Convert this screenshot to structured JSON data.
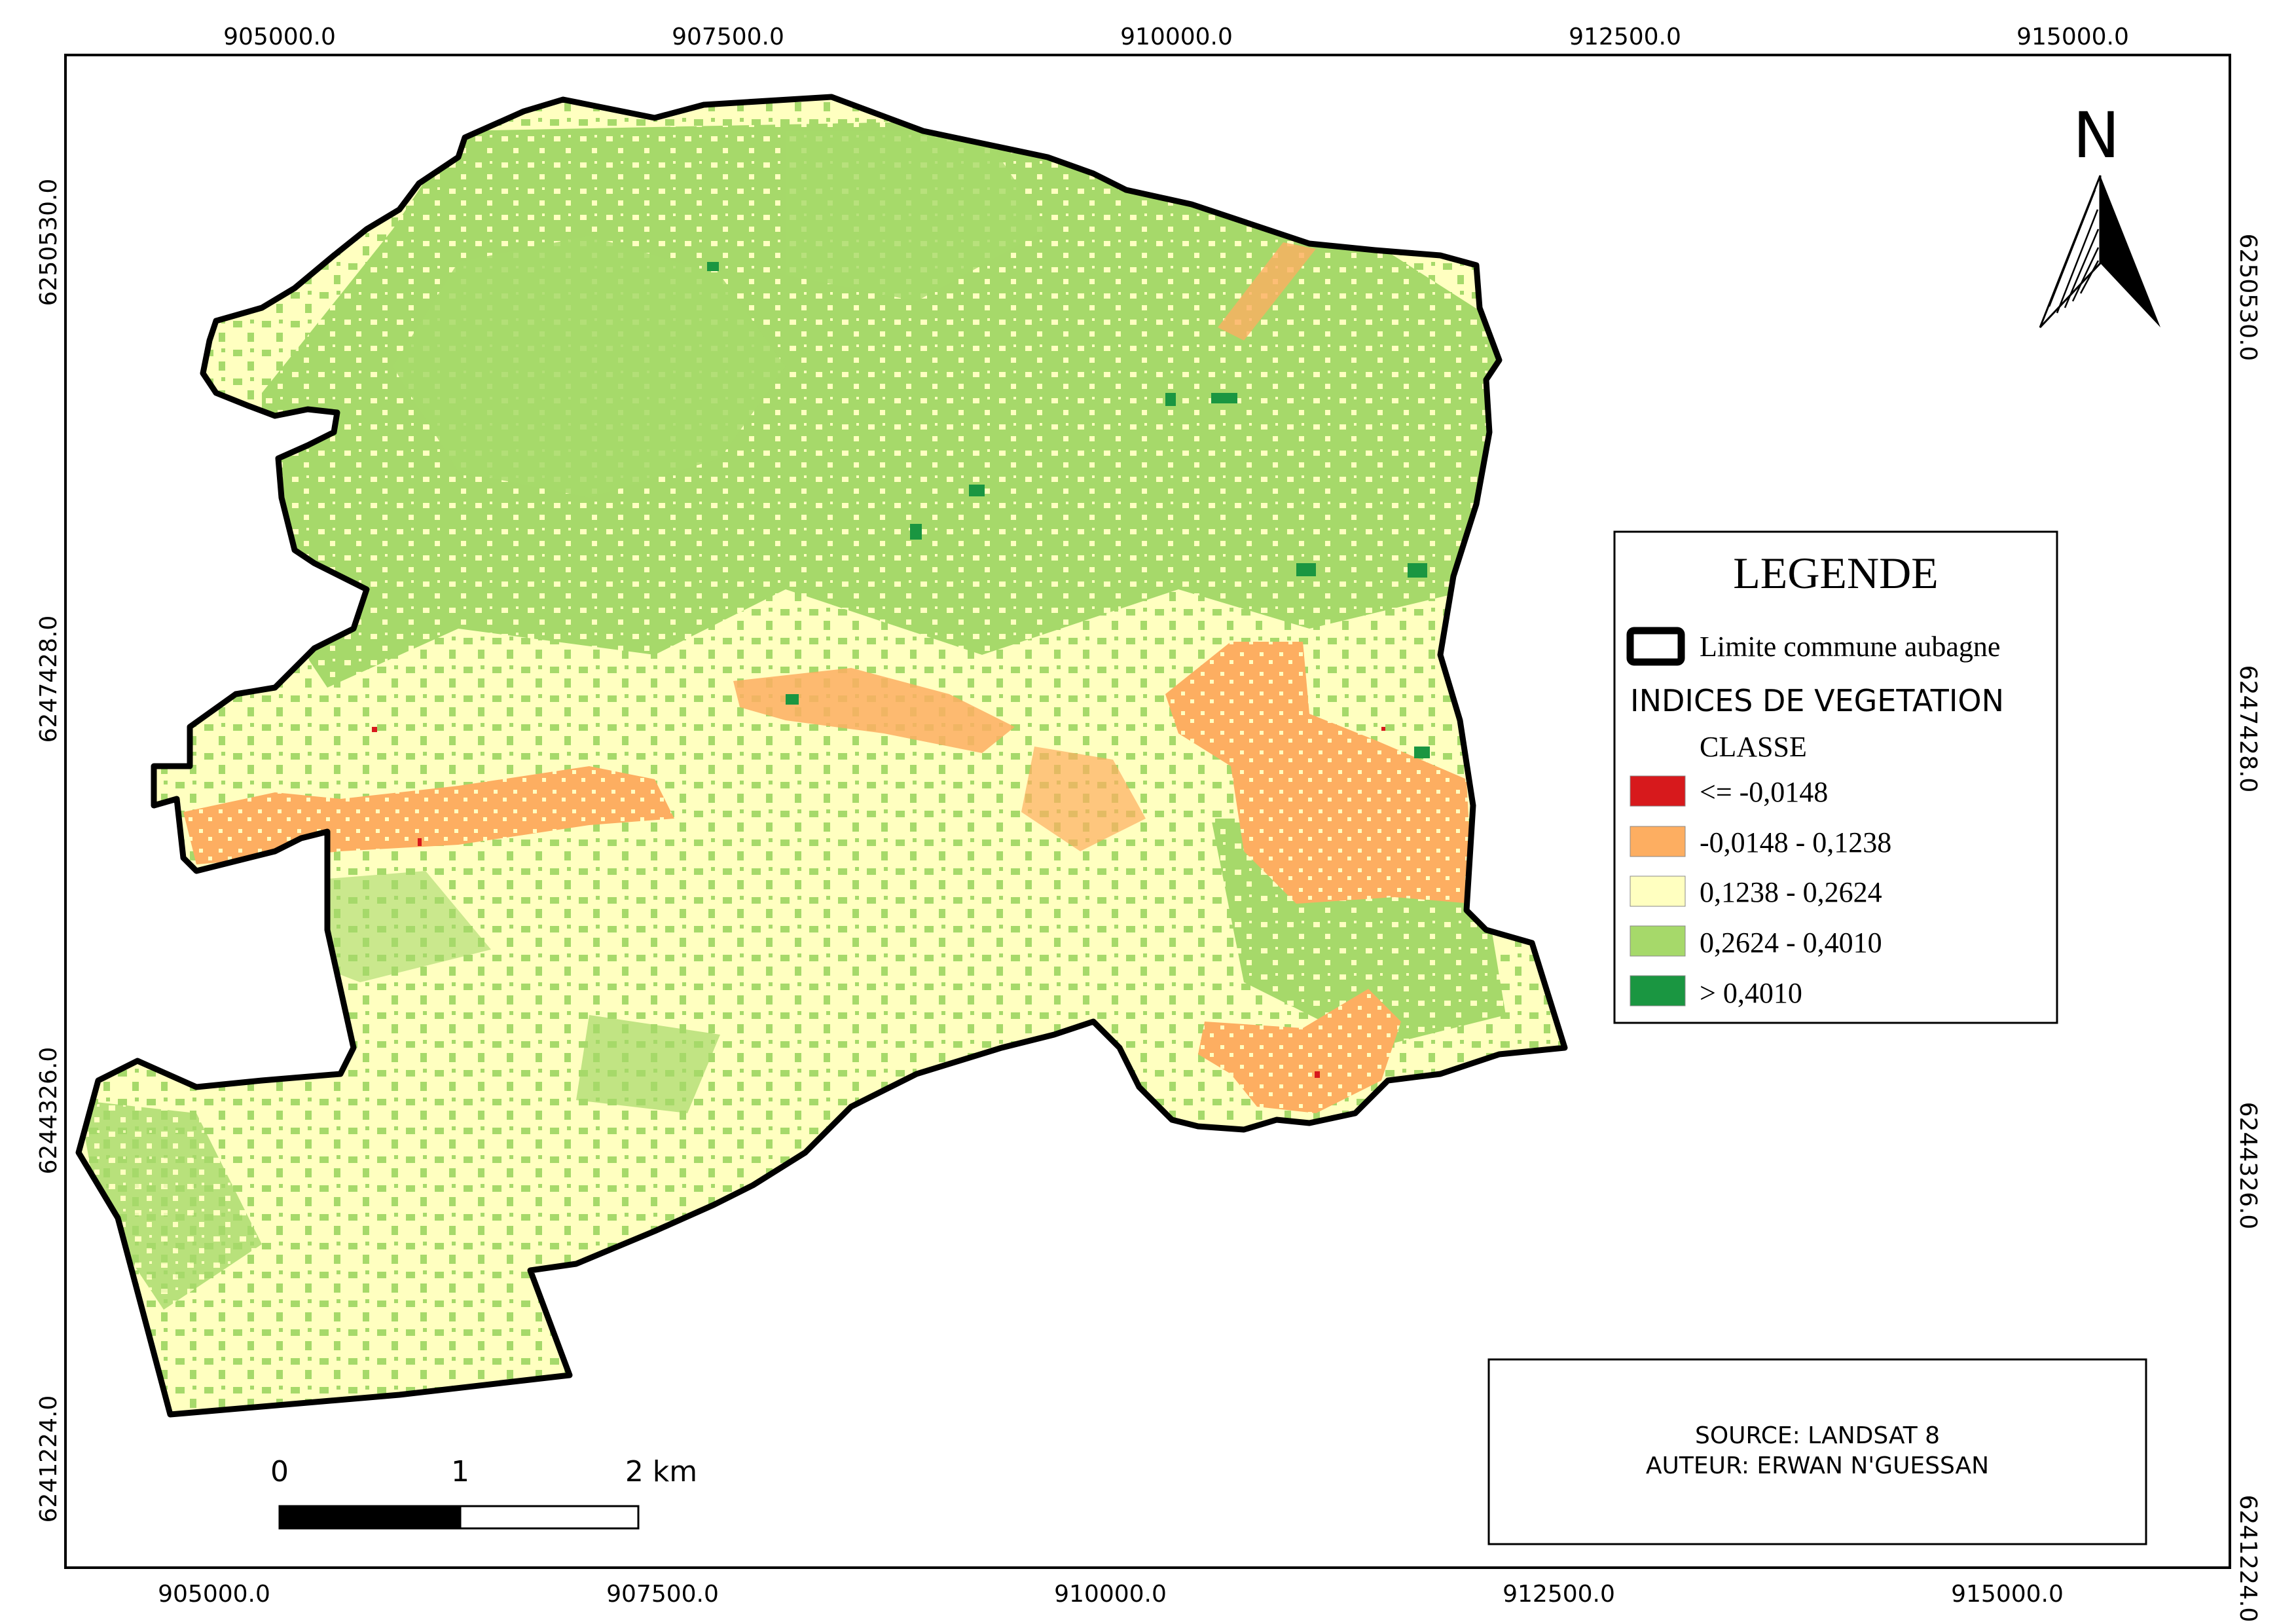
{
  "map": {
    "coords_top": [
      "905000.0",
      "907500.0",
      "910000.0",
      "912500.0",
      "915000.0"
    ],
    "coords_bottom": [
      "905000.0",
      "907500.0",
      "910000.0",
      "912500.0",
      "915000.0"
    ],
    "coords_left": [
      "6250530.0",
      "6247428.0",
      "6244326.0",
      "6241224.0"
    ],
    "coords_right": [
      "6250530.0",
      "6247428.0",
      "6244326.0",
      "6241224.0"
    ]
  },
  "north_arrow": {
    "label": "N",
    "icon": "north-arrow-icon"
  },
  "legend": {
    "title": "LEGENDE",
    "boundary_label": "Limite commune aubagne",
    "section_title": "INDICES DE VEGETATION",
    "class_header": "CLASSE",
    "classes": [
      {
        "label": "<= -0,0148",
        "color": "#d7191c"
      },
      {
        "label": "-0,0148 - 0,1238",
        "color": "#fdae61"
      },
      {
        "label": "0,1238 - 0,2624",
        "color": "#ffffc0"
      },
      {
        "label": "0,2624 - 0,4010",
        "color": "#a6d96a"
      },
      {
        "label": "> 0,4010",
        "color": "#1a9641"
      }
    ]
  },
  "credits": {
    "source": "SOURCE: LANDSAT 8",
    "author": "AUTEUR: ERWAN N'GUESSAN"
  },
  "scale_bar": {
    "labels": [
      "0",
      "1",
      "2 km"
    ]
  }
}
